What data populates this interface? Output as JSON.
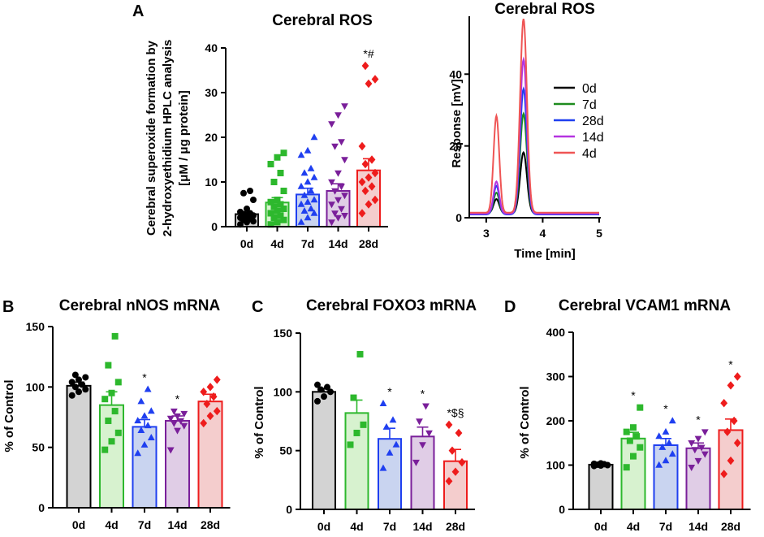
{
  "chart_data": [
    {
      "id": "A1",
      "type": "bar",
      "panel_letter": "A",
      "title": "Cerebral ROS",
      "ylabel_lines": [
        "Cerebral superoxide formation by",
        "2-hydroxyethidium HPLC analysis",
        "[μM / μg protein]"
      ],
      "ylim": [
        0,
        40
      ],
      "yticks": [
        0,
        10,
        20,
        30,
        40
      ],
      "categories": [
        "0d",
        "4d",
        "7d",
        "14d",
        "28d"
      ],
      "colors": [
        "#000000",
        "#2db82d",
        "#1f3ff0",
        "#7a1f9a",
        "#ee1c1c"
      ],
      "fills": [
        "#d3d3d3",
        "#d7f2cf",
        "#c9d4f0",
        "#e0cde6",
        "#f4cdcd"
      ],
      "values": [
        2.8,
        5.4,
        7.2,
        8.0,
        12.6
      ],
      "sem": [
        0.4,
        1.1,
        1.4,
        1.6,
        2.6
      ],
      "annotations": [
        "",
        "",
        "",
        "",
        "*#"
      ],
      "points": [
        [
          0.5,
          1,
          1.2,
          1.5,
          1.8,
          2,
          2.2,
          2.5,
          2.8,
          3,
          3.3,
          4,
          6,
          7.5,
          8
        ],
        [
          0.5,
          1,
          1.5,
          2,
          2.5,
          3,
          3.5,
          4,
          4.5,
          5,
          5.5,
          6,
          8,
          10,
          12,
          14,
          15.5,
          16.5
        ],
        [
          1,
          2,
          3,
          3.5,
          4,
          5,
          5.5,
          6,
          7,
          8,
          9,
          10,
          11,
          12,
          13,
          16,
          17,
          20
        ],
        [
          1,
          2,
          2.5,
          3,
          4,
          5,
          6,
          7,
          8,
          9,
          10,
          12,
          15,
          18,
          19,
          23,
          25,
          27
        ],
        [
          3,
          5,
          6,
          8,
          9,
          10,
          11,
          12,
          14,
          15,
          18,
          32,
          33,
          36
        ]
      ]
    },
    {
      "id": "A2",
      "type": "line",
      "title": "Cerebral ROS",
      "xlabel": "Time [min]",
      "ylabel": "Response [mV]",
      "xlim": [
        2.7,
        5
      ],
      "ylim": [
        0,
        55
      ],
      "xticks": [
        3,
        4,
        5
      ],
      "yticks": [
        0,
        20,
        40
      ],
      "series": [
        {
          "name": "0d",
          "color": "#000000",
          "base": 1.2,
          "peaks": [
            [
              3.18,
              4,
              0.05
            ],
            [
              3.66,
              17,
              0.06
            ]
          ]
        },
        {
          "name": "7d",
          "color": "#1e8c1e",
          "base": 1.0,
          "peaks": [
            [
              3.18,
              6,
              0.05
            ],
            [
              3.66,
              28,
              0.06
            ]
          ]
        },
        {
          "name": "28d",
          "color": "#1f3ff0",
          "base": 0.9,
          "peaks": [
            [
              3.18,
              8,
              0.05
            ],
            [
              3.66,
              35,
              0.06
            ]
          ]
        },
        {
          "name": "14d",
          "color": "#b533e0",
          "base": 1.1,
          "peaks": [
            [
              3.18,
              9,
              0.05
            ],
            [
              3.66,
              43,
              0.06
            ]
          ]
        },
        {
          "name": "4d",
          "color": "#ef5555",
          "base": 1.4,
          "peaks": [
            [
              3.18,
              27,
              0.05
            ],
            [
              3.66,
              54,
              0.06
            ]
          ]
        }
      ]
    },
    {
      "id": "B",
      "type": "bar",
      "panel_letter": "B",
      "title": "Cerebral nNOS mRNA",
      "ylabel": "% of Control",
      "ylim": [
        0,
        150
      ],
      "yticks": [
        0,
        50,
        100,
        150
      ],
      "categories": [
        "0d",
        "4d",
        "7d",
        "14d",
        "28d"
      ],
      "colors": [
        "#000000",
        "#2db82d",
        "#1f3ff0",
        "#7a1f9a",
        "#ee1c1c"
      ],
      "fills": [
        "#d3d3d3",
        "#d7f2cf",
        "#c9d4f0",
        "#e0cde6",
        "#f4cdcd"
      ],
      "values": [
        101,
        85,
        67,
        72,
        88
      ],
      "sem": [
        3,
        11,
        6,
        4,
        6
      ],
      "annotations": [
        "",
        "",
        "*",
        "*",
        ""
      ],
      "points": [
        [
          93,
          96,
          98,
          100,
          102,
          104,
          106,
          108,
          110
        ],
        [
          48,
          55,
          62,
          72,
          80,
          90,
          95,
          104,
          118,
          142
        ],
        [
          45,
          52,
          58,
          64,
          68,
          72,
          76,
          80,
          88,
          98
        ],
        [
          48,
          64,
          68,
          70,
          72,
          74,
          76,
          78,
          80
        ],
        [
          70,
          76,
          80,
          86,
          92,
          96,
          100,
          106
        ]
      ]
    },
    {
      "id": "C",
      "type": "bar",
      "panel_letter": "C",
      "title": "Cerebral FOXO3 mRNA",
      "ylabel": "% of Control",
      "ylim": [
        0,
        150
      ],
      "yticks": [
        0,
        50,
        100,
        150
      ],
      "categories": [
        "0d",
        "4d",
        "7d",
        "14d",
        "28d"
      ],
      "colors": [
        "#000000",
        "#2db82d",
        "#1f3ff0",
        "#7a1f9a",
        "#ee1c1c"
      ],
      "fills": [
        "#d3d3d3",
        "#d7f2cf",
        "#c9d4f0",
        "#e0cde6",
        "#f4cdcd"
      ],
      "values": [
        100,
        82,
        60,
        62,
        41
      ],
      "sem": [
        3,
        11,
        9,
        8,
        10
      ],
      "annotations": [
        "",
        "",
        "*",
        "*",
        "*$§"
      ],
      "points": [
        [
          92,
          96,
          100,
          102,
          104,
          106
        ],
        [
          55,
          65,
          72,
          95,
          132
        ],
        [
          35,
          48,
          55,
          70,
          76,
          90
        ],
        [
          40,
          55,
          65,
          75,
          88
        ],
        [
          24,
          32,
          40,
          50,
          65,
          72
        ]
      ]
    },
    {
      "id": "D",
      "type": "bar",
      "panel_letter": "D",
      "title": "Cerebral VCAM1 mRNA",
      "ylabel": "% of Control",
      "ylim": [
        0,
        400
      ],
      "yticks": [
        0,
        100,
        200,
        300,
        400
      ],
      "categories": [
        "0d",
        "4d",
        "7d",
        "14d",
        "28d"
      ],
      "colors": [
        "#000000",
        "#2db82d",
        "#1f3ff0",
        "#7a1f9a",
        "#ee1c1c"
      ],
      "fills": [
        "#d3d3d3",
        "#d7f2cf",
        "#c9d4f0",
        "#e0cde6",
        "#f4cdcd"
      ],
      "values": [
        101,
        160,
        145,
        138,
        179
      ],
      "sem": [
        2,
        14,
        15,
        12,
        25
      ],
      "annotations": [
        "",
        "*",
        "*",
        "*",
        "*"
      ],
      "points": [
        [
          98,
          99,
          100,
          101,
          102,
          103,
          104
        ],
        [
          95,
          120,
          140,
          155,
          165,
          175,
          185,
          230
        ],
        [
          100,
          110,
          125,
          140,
          150,
          165,
          175,
          200
        ],
        [
          95,
          110,
          125,
          135,
          140,
          150,
          160,
          175
        ],
        [
          80,
          110,
          150,
          175,
          200,
          240,
          280,
          300
        ]
      ]
    }
  ]
}
